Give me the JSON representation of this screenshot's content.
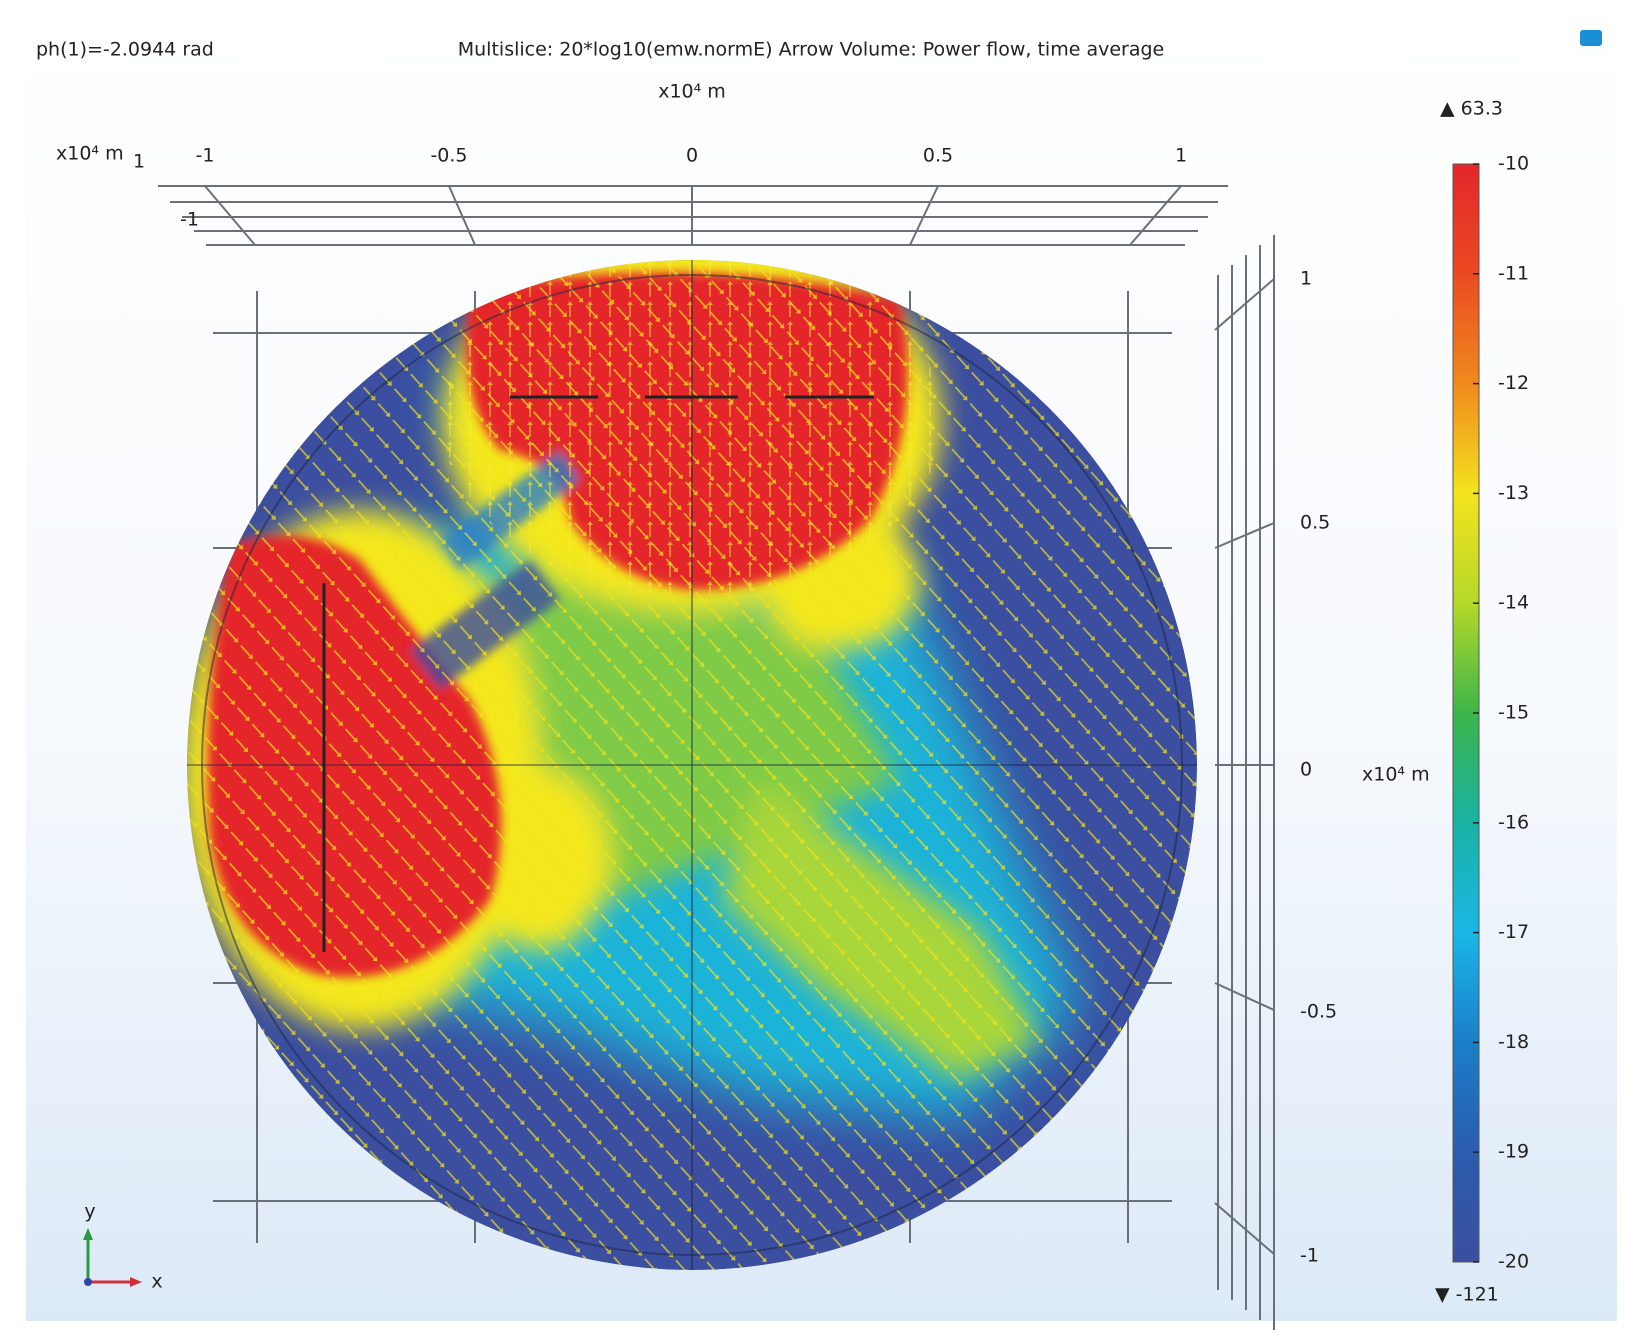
{
  "header": {
    "parameter": "ph(1)=-2.0944 rad",
    "title": "Multislice: 20*log10(emw.normE)  Arrow Volume: Power flow, time average"
  },
  "x_axis": {
    "unit": "x10⁴ m",
    "ticks": [
      "-1",
      "-0.5",
      "0",
      "0.5",
      "1"
    ]
  },
  "corner_axis": {
    "unit": "x10⁴ m",
    "labels": [
      "1",
      "-1"
    ]
  },
  "y_axis": {
    "unit": "x10⁴ m",
    "ticks": [
      "1",
      "0.5",
      "0",
      "-0.5",
      "-1"
    ]
  },
  "colorbar": {
    "max": "▲ 63.3",
    "min": "▼ -121",
    "ticks": [
      "-10",
      "-11",
      "-12",
      "-13",
      "-14",
      "-15",
      "-16",
      "-17",
      "-18",
      "-19",
      "-20"
    ]
  },
  "triad": {
    "y": "y",
    "x": "x"
  }
}
